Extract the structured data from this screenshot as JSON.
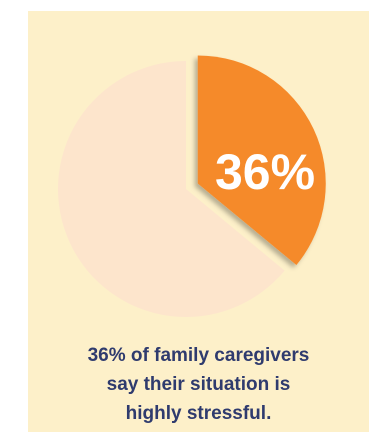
{
  "chart_data": {
    "type": "pie",
    "slices": [
      {
        "value": 36,
        "color": "#f58a2a",
        "exploded": true
      },
      {
        "value": 64,
        "color": "#fde5cc",
        "exploded": false
      }
    ],
    "data_label": "36%",
    "caption_lines": [
      "36% of family caregivers",
      "say their situation is",
      "highly stressful."
    ]
  },
  "colors": {
    "background": "#fdf0c9",
    "highlight": "#f58a2a",
    "remainder": "#fde5cc",
    "caption": "#2f3b6e",
    "label": "#ffffff"
  }
}
